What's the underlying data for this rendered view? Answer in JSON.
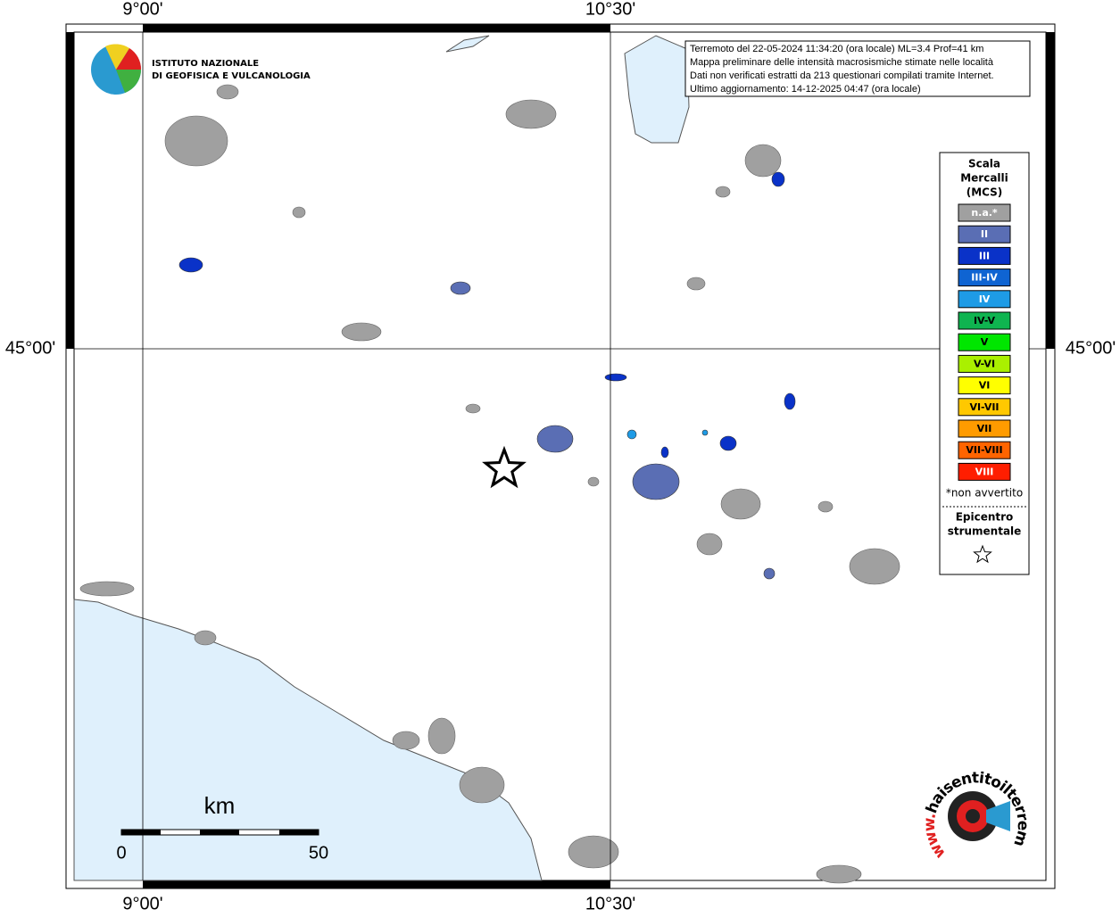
{
  "grid_labels": {
    "top": [
      "9°00'",
      "10°30'"
    ],
    "bottom": [
      "9°00'",
      "10°30'"
    ],
    "left": [
      "45°00'"
    ],
    "right": [
      "45°00'"
    ]
  },
  "institute": [
    "ISTITUTO NAZIONALE",
    "DI GEOFISICA E VULCANOLOGIA"
  ],
  "info": [
    "Terremoto del 22-05-2024 11:34:20 (ora locale) ML=3.4 Prof=41 km",
    "Mappa preliminare delle intensità macrosismiche stimate nelle località",
    "Dati non verificati estratti da 213 questionari compilati tramite Internet.",
    "Ultimo aggiornamento: 14-12-2025 04:47 (ora locale)"
  ],
  "legend": {
    "title": [
      "Scala",
      "Mercalli",
      "(MCS)"
    ],
    "items": [
      {
        "label": "n.a.*",
        "color": "#a0a0a0",
        "text_color": "#ffffff"
      },
      {
        "label": "II",
        "color": "#5a6eb4",
        "text_color": "#ffffff"
      },
      {
        "label": "III",
        "color": "#0a32c8",
        "text_color": "#ffffff"
      },
      {
        "label": "III-IV",
        "color": "#0f64d2",
        "text_color": "#ffffff"
      },
      {
        "label": "IV",
        "color": "#1e9be6",
        "text_color": "#ffffff"
      },
      {
        "label": "IV-V",
        "color": "#0fb450",
        "text_color": "#000000"
      },
      {
        "label": "V",
        "color": "#00e600",
        "text_color": "#000000"
      },
      {
        "label": "V-VI",
        "color": "#aaf000",
        "text_color": "#000000"
      },
      {
        "label": "VI",
        "color": "#ffff00",
        "text_color": "#000000"
      },
      {
        "label": "VI-VII",
        "color": "#ffc800",
        "text_color": "#000000"
      },
      {
        "label": "VII",
        "color": "#ff9b00",
        "text_color": "#000000"
      },
      {
        "label": "VII-VIII",
        "color": "#ff6400",
        "text_color": "#000000"
      },
      {
        "label": "VIII",
        "color": "#ff1e00",
        "text_color": "#ffffff"
      }
    ],
    "note": "*non avvertito",
    "epicenter": [
      "Epicentro",
      "strumentale"
    ]
  },
  "scale": {
    "unit": "km",
    "labels": [
      "0",
      "50"
    ]
  },
  "site": {
    "name": "haisentitoilterremoto.it",
    "prefix": "www."
  }
}
